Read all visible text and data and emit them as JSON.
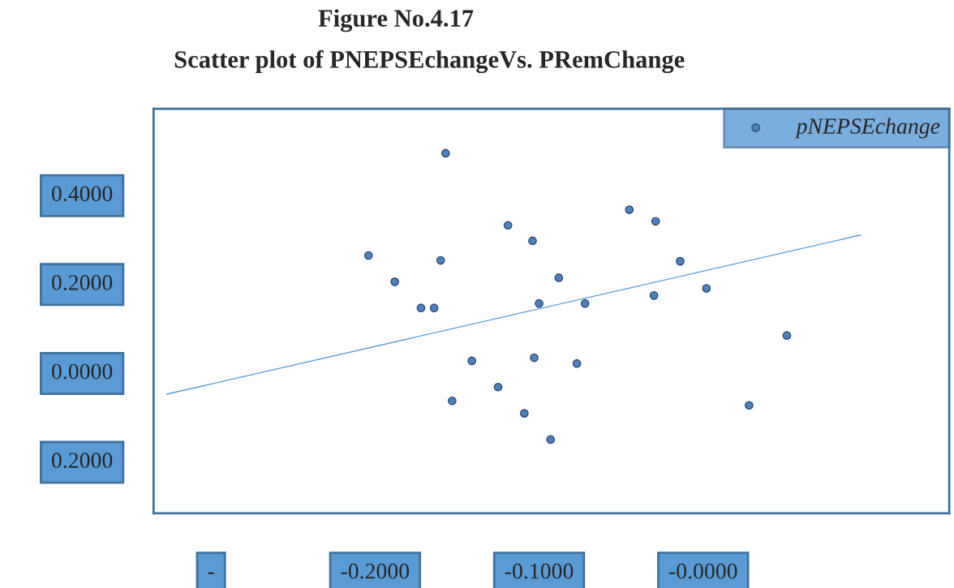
{
  "chart_data": {
    "type": "scatter",
    "title": "Figure No.4.17",
    "subtitle": "Scatter plot of PNEPSEchangeVs. PRemChange",
    "xlim": [
      -0.335,
      0.15
    ],
    "ylim": [
      -0.32,
      0.59
    ],
    "xticks": [
      {
        "value": -0.3,
        "label": "-"
      },
      {
        "value": -0.2,
        "label": "-0.2000"
      },
      {
        "value": -0.1,
        "label": "-0.1000"
      },
      {
        "value": 0.0,
        "label": "-0.0000"
      }
    ],
    "yticks": [
      {
        "value": 0.4,
        "label": "0.4000"
      },
      {
        "value": 0.2,
        "label": "0.2000"
      },
      {
        "value": 0.0,
        "label": "0.0000"
      },
      {
        "value": -0.2,
        "label": "0.2000"
      }
    ],
    "grid": false,
    "legend": "top right",
    "series": [
      {
        "name": "pNEPSEchange",
        "marker": "circle",
        "color": "#4f81bd",
        "x": [
          -0.157,
          -0.204,
          -0.188,
          -0.172,
          -0.164,
          -0.16,
          -0.119,
          -0.104,
          -0.088,
          -0.1,
          -0.072,
          -0.045,
          -0.029,
          -0.014,
          -0.03,
          0.002,
          0.051,
          -0.141,
          -0.103,
          -0.077,
          -0.125,
          -0.153,
          -0.109,
          -0.093,
          0.028
        ],
        "values": [
          0.49,
          0.26,
          0.201,
          0.142,
          0.142,
          0.249,
          0.328,
          0.293,
          0.21,
          0.152,
          0.152,
          0.363,
          0.337,
          0.247,
          0.17,
          0.186,
          0.08,
          0.023,
          0.03,
          0.017,
          -0.036,
          -0.067,
          -0.095,
          -0.154,
          -0.077
        ]
      },
      {
        "type": "line",
        "marker": "none",
        "color": "#5b9bd5",
        "x": [
          -0.327,
          0.096
        ],
        "values": [
          -0.052,
          0.306
        ]
      }
    ]
  }
}
